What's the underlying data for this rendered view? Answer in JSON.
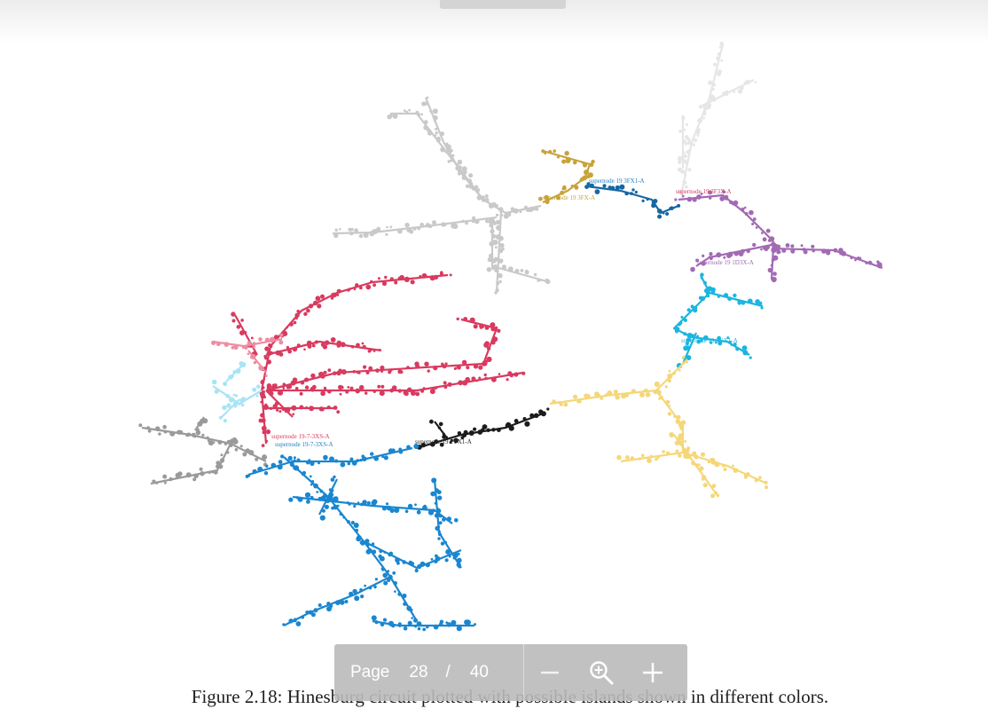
{
  "figure": {
    "caption": "Figure 2.18: Hinesburg circuit plotted with possible islands shown in different colors.",
    "labels": [
      {
        "text": "supernode 19 3FX1-A",
        "color": "#1f7fc4"
      },
      {
        "text": "supernode 19 3FX-A",
        "color": "#c7a33a"
      },
      {
        "text": "supernode 19 3F3X-A",
        "color": "#d93a5f"
      },
      {
        "text": "supernode 19 1D3X-A",
        "color": "#a26ab4"
      },
      {
        "text": "supernode 19 3YX1-A",
        "color": "#1cb5df"
      },
      {
        "text": "supernode 19 1YX1-A",
        "color": "#222222"
      },
      {
        "text": "supernode 19-7-3XS-A",
        "color": "#d93a5f"
      },
      {
        "text": "supernode 19-7-3XS-A",
        "color": "#1f7fc4"
      }
    ]
  },
  "viewer": {
    "page_label": "Page",
    "current_page": "28",
    "separator": "/",
    "total_pages": "40"
  }
}
